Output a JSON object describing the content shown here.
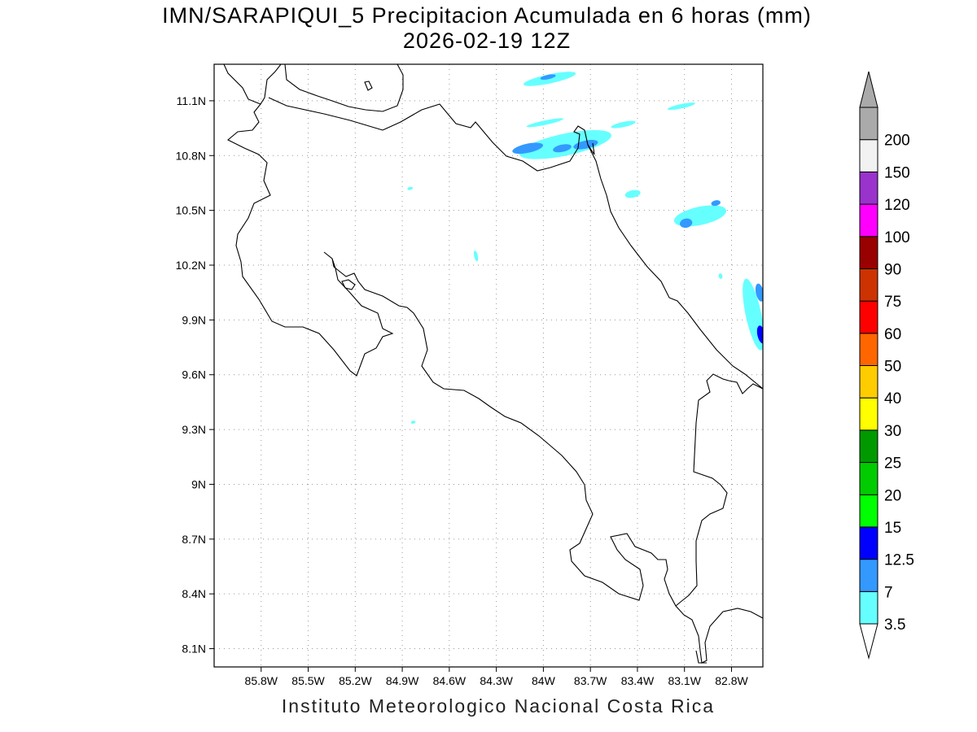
{
  "header": {
    "title": "IMN/SARAPIQUI_5 Precipitacion Acumulada en 6 horas (mm)",
    "subtitle": "2026-02-19 12Z"
  },
  "footer": {
    "credit": "Instituto Meteorologico Nacional Costa Rica"
  },
  "map": {
    "lon_range": [
      -86.1,
      -82.6
    ],
    "lat_range": [
      8.0,
      11.3
    ],
    "grid_lines": "dotted",
    "lon_ticks": [
      {
        "value": -85.8,
        "label": "85.8W"
      },
      {
        "value": -85.5,
        "label": "85.5W"
      },
      {
        "value": -85.2,
        "label": "85.2W"
      },
      {
        "value": -84.9,
        "label": "84.9W"
      },
      {
        "value": -84.6,
        "label": "84.6W"
      },
      {
        "value": -84.3,
        "label": "84.3W"
      },
      {
        "value": -84.0,
        "label": "84W"
      },
      {
        "value": -83.7,
        "label": "83.7W"
      },
      {
        "value": -83.4,
        "label": "83.4W"
      },
      {
        "value": -83.1,
        "label": "83.1W"
      },
      {
        "value": -82.8,
        "label": "82.8W"
      }
    ],
    "lat_ticks": [
      {
        "value": 11.1,
        "label": "11.1N"
      },
      {
        "value": 10.8,
        "label": "10.8N"
      },
      {
        "value": 10.5,
        "label": "10.5N"
      },
      {
        "value": 10.2,
        "label": "10.2N"
      },
      {
        "value": 9.9,
        "label": "9.9N"
      },
      {
        "value": 9.6,
        "label": "9.6N"
      },
      {
        "value": 9.3,
        "label": "9.3N"
      },
      {
        "value": 9.0,
        "label": "9N"
      },
      {
        "value": 8.7,
        "label": "8.7N"
      },
      {
        "value": 8.4,
        "label": "8.4N"
      },
      {
        "value": 8.1,
        "label": "8.1N"
      }
    ],
    "precip_areas": [
      {
        "lon": -83.96,
        "lat": 11.22,
        "rlon": 0.17,
        "rlat": 0.025,
        "level": "3.5"
      },
      {
        "lon": -83.97,
        "lat": 11.23,
        "rlon": 0.05,
        "rlat": 0.012,
        "level": "7"
      },
      {
        "lon": -83.86,
        "lat": 10.86,
        "rlon": 0.3,
        "rlat": 0.06,
        "level": "3.5"
      },
      {
        "lon": -84.1,
        "lat": 10.84,
        "rlon": 0.1,
        "rlat": 0.025,
        "level": "7"
      },
      {
        "lon": -83.88,
        "lat": 10.84,
        "rlon": 0.06,
        "rlat": 0.02,
        "level": "7"
      },
      {
        "lon": -83.73,
        "lat": 10.86,
        "rlon": 0.08,
        "rlat": 0.022,
        "level": "7"
      },
      {
        "lon": -83.99,
        "lat": 10.98,
        "rlon": 0.12,
        "rlat": 0.012,
        "level": "3.5"
      },
      {
        "lon": -83.49,
        "lat": 10.97,
        "rlon": 0.08,
        "rlat": 0.014,
        "level": "3.5"
      },
      {
        "lon": -83.12,
        "lat": 11.07,
        "rlon": 0.09,
        "rlat": 0.012,
        "level": "3.5"
      },
      {
        "lon": -83.43,
        "lat": 10.59,
        "rlon": 0.05,
        "rlat": 0.02,
        "level": "3.5"
      },
      {
        "lon": -83.0,
        "lat": 10.47,
        "rlon": 0.17,
        "rlat": 0.05,
        "level": "3.5"
      },
      {
        "lon": -83.09,
        "lat": 10.43,
        "rlon": 0.04,
        "rlat": 0.025,
        "level": "7"
      },
      {
        "lon": -82.9,
        "lat": 10.54,
        "rlon": 0.03,
        "rlat": 0.015,
        "level": "7"
      },
      {
        "lon": -82.66,
        "lat": 9.93,
        "rlon": 0.05,
        "rlat": 0.2,
        "level": "3.5"
      },
      {
        "lon": -82.62,
        "lat": 10.05,
        "rlon": 0.025,
        "rlat": 0.05,
        "level": "7"
      },
      {
        "lon": -82.61,
        "lat": 9.82,
        "rlon": 0.025,
        "rlat": 0.05,
        "level": "12.5"
      },
      {
        "lon": -84.43,
        "lat": 10.25,
        "rlon": 0.012,
        "rlat": 0.03,
        "level": "3.5"
      },
      {
        "lon": -84.85,
        "lat": 10.62,
        "rlon": 0.018,
        "rlat": 0.008,
        "level": "3.5"
      },
      {
        "lon": -84.83,
        "lat": 9.34,
        "rlon": 0.015,
        "rlat": 0.008,
        "level": "3.5"
      },
      {
        "lon": -82.87,
        "lat": 10.14,
        "rlon": 0.012,
        "rlat": 0.015,
        "level": "3.5"
      }
    ]
  },
  "colorbar": {
    "levels": [
      {
        "label": "3.5",
        "color": "#66ffff"
      },
      {
        "label": "7",
        "color": "#3399ff"
      },
      {
        "label": "12.5",
        "color": "#0000ff"
      },
      {
        "label": "15",
        "color": "#00ff00"
      },
      {
        "label": "20",
        "color": "#00cc00"
      },
      {
        "label": "25",
        "color": "#009900"
      },
      {
        "label": "30",
        "color": "#ffff00"
      },
      {
        "label": "40",
        "color": "#ffcc00"
      },
      {
        "label": "50",
        "color": "#ff6600"
      },
      {
        "label": "60",
        "color": "#ff0000"
      },
      {
        "label": "75",
        "color": "#cc3300"
      },
      {
        "label": "90",
        "color": "#990000"
      },
      {
        "label": "100",
        "color": "#ff00ff"
      },
      {
        "label": "120",
        "color": "#9933cc"
      },
      {
        "label": "150",
        "color": "#f2f2f2"
      },
      {
        "label": "200",
        "color": "#aaaaaa"
      }
    ],
    "over_color": "#aaaaaa",
    "under_color": "#ffffff"
  }
}
